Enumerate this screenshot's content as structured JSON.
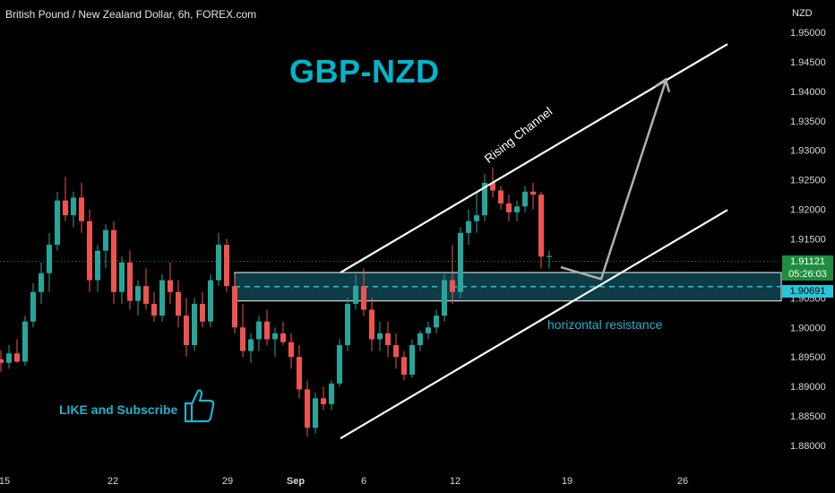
{
  "header": {
    "symbol_title": "British Pound / New Zealand Dollar, 6h, FOREX.com",
    "axis_unit": "NZD"
  },
  "annotations": {
    "title": "GBP-NZD",
    "channel_label": "Rising Channel",
    "zone_label": "horizontal resistance",
    "cta": "LIKE and Subscribe",
    "thumb_icon": "thumbs-up-icon"
  },
  "price_badge": {
    "price": "1.91121",
    "countdown": "05:26:03",
    "zone_price": "1.90691"
  },
  "colors": {
    "background": "#000000",
    "bull": "#26a69a",
    "bear": "#ef5350",
    "zone_fill": "#0d3b46",
    "zone_border": "#cfd8dc",
    "accent": "#00b5cc",
    "channel": "#ffffff",
    "arrow": "#b0b0b0"
  },
  "chart_data": {
    "type": "candlestick",
    "symbol": "GBPNZD",
    "timeframe": "6h",
    "y_axis": {
      "ticks": [
        "1.95000",
        "1.94500",
        "1.94000",
        "1.93500",
        "1.93000",
        "1.92500",
        "1.92000",
        "1.91500",
        "1.91121",
        "1.90691",
        "1.90500",
        "1.90000",
        "1.89500",
        "1.89000",
        "1.88500",
        "1.88000"
      ],
      "ylim": [
        1.8768,
        1.9546
      ]
    },
    "x_axis": {
      "ticks": [
        "15",
        "22",
        "29",
        "Sep",
        "6",
        "12",
        "19",
        "26"
      ]
    },
    "last_price": 1.91121,
    "resistance_zone": [
      1.9045,
      1.9093
    ],
    "resistance_mid": 1.90691,
    "rising_channel": {
      "upper": [
        [
          50,
          1.9093
        ],
        [
          98,
          1.948
        ]
      ],
      "lower": [
        [
          50,
          1.8812
        ],
        [
          98,
          1.9199
        ]
      ]
    },
    "projection": [
      [
        79,
        1.9102
      ],
      [
        84,
        1.9082
      ],
      [
        92,
        1.9417
      ]
    ],
    "candles": [
      [
        1.8946,
        1.8961,
        1.8925,
        1.894
      ],
      [
        1.894,
        1.897,
        1.893,
        1.8956
      ],
      [
        1.8956,
        1.898,
        1.894,
        1.8942
      ],
      [
        1.8942,
        1.902,
        1.8935,
        1.901
      ],
      [
        1.901,
        1.9075,
        1.9,
        1.906
      ],
      [
        1.906,
        1.911,
        1.904,
        1.9092
      ],
      [
        1.9092,
        1.916,
        1.906,
        1.914
      ],
      [
        1.914,
        1.923,
        1.913,
        1.9215
      ],
      [
        1.9215,
        1.9255,
        1.918,
        1.919
      ],
      [
        1.919,
        1.923,
        1.917,
        1.922
      ],
      [
        1.922,
        1.9245,
        1.916,
        1.918
      ],
      [
        1.918,
        1.92,
        1.906,
        1.908
      ],
      [
        1.908,
        1.914,
        1.906,
        1.913
      ],
      [
        1.913,
        1.9175,
        1.91,
        1.9165
      ],
      [
        1.9165,
        1.918,
        1.904,
        1.906
      ],
      [
        1.906,
        1.912,
        1.904,
        1.911
      ],
      [
        1.911,
        1.913,
        1.903,
        1.9045
      ],
      [
        1.9045,
        1.908,
        1.902,
        1.907
      ],
      [
        1.907,
        1.91,
        1.903,
        1.904
      ],
      [
        1.904,
        1.906,
        1.901,
        1.902
      ],
      [
        1.902,
        1.909,
        1.901,
        1.908
      ],
      [
        1.908,
        1.911,
        1.904,
        1.906
      ],
      [
        1.906,
        1.908,
        1.9,
        1.902
      ],
      [
        1.902,
        1.905,
        1.895,
        1.897
      ],
      [
        1.897,
        1.905,
        1.896,
        1.904
      ],
      [
        1.904,
        1.906,
        1.9,
        1.901
      ],
      [
        1.901,
        1.909,
        1.9,
        1.908
      ],
      [
        1.908,
        1.916,
        1.907,
        1.914
      ],
      [
        1.914,
        1.915,
        1.906,
        1.907
      ],
      [
        1.907,
        1.909,
        1.899,
        1.9
      ],
      [
        1.9,
        1.904,
        1.895,
        1.896
      ],
      [
        1.896,
        1.899,
        1.894,
        1.898
      ],
      [
        1.898,
        1.902,
        1.896,
        1.901
      ],
      [
        1.901,
        1.903,
        1.897,
        1.898
      ],
      [
        1.898,
        1.9,
        1.895,
        1.899
      ],
      [
        1.899,
        1.901,
        1.897,
        1.8975
      ],
      [
        1.8975,
        1.899,
        1.893,
        1.895
      ],
      [
        1.895,
        1.897,
        1.888,
        1.8895
      ],
      [
        1.8895,
        1.891,
        1.8815,
        1.883
      ],
      [
        1.883,
        1.889,
        1.882,
        1.888
      ],
      [
        1.888,
        1.89,
        1.886,
        1.887
      ],
      [
        1.887,
        1.891,
        1.886,
        1.8905
      ],
      [
        1.8905,
        1.898,
        1.89,
        1.897
      ],
      [
        1.897,
        1.905,
        1.896,
        1.904
      ],
      [
        1.904,
        1.909,
        1.903,
        1.907
      ],
      [
        1.907,
        1.91,
        1.902,
        1.903
      ],
      [
        1.903,
        1.905,
        1.896,
        1.898
      ],
      [
        1.898,
        1.901,
        1.896,
        1.899
      ],
      [
        1.899,
        1.901,
        1.895,
        1.897
      ],
      [
        1.897,
        1.899,
        1.893,
        1.895
      ],
      [
        1.895,
        1.896,
        1.891,
        1.892
      ],
      [
        1.892,
        1.898,
        1.8915,
        1.897
      ],
      [
        1.897,
        1.8995,
        1.896,
        1.899
      ],
      [
        1.899,
        1.901,
        1.898,
        1.9
      ],
      [
        1.9,
        1.903,
        1.899,
        1.902
      ],
      [
        1.902,
        1.909,
        1.901,
        1.908
      ],
      [
        1.908,
        1.914,
        1.904,
        1.906
      ],
      [
        1.906,
        1.917,
        1.905,
        1.916
      ],
      [
        1.916,
        1.92,
        1.914,
        1.918
      ],
      [
        1.918,
        1.923,
        1.916,
        1.919
      ],
      [
        1.919,
        1.926,
        1.918,
        1.9245
      ],
      [
        1.9245,
        1.927,
        1.922,
        1.9232
      ],
      [
        1.9232,
        1.924,
        1.92,
        1.921
      ],
      [
        1.921,
        1.9225,
        1.918,
        1.9195
      ],
      [
        1.9195,
        1.9215,
        1.918,
        1.9205
      ],
      [
        1.9205,
        1.924,
        1.9195,
        1.923
      ],
      [
        1.923,
        1.9245,
        1.92,
        1.9225
      ],
      [
        1.9225,
        1.923,
        1.91,
        1.912
      ],
      [
        1.912,
        1.913,
        1.91,
        1.9121
      ]
    ]
  }
}
